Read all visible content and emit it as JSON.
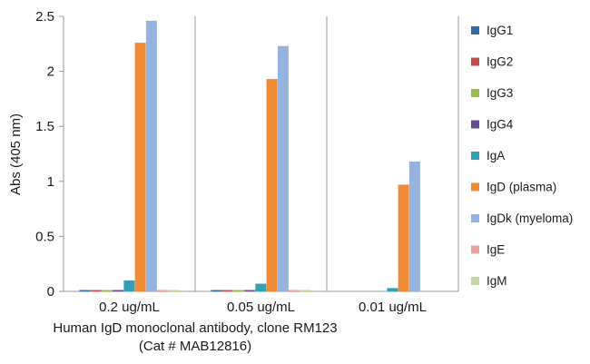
{
  "chart_data": {
    "type": "bar",
    "title": "",
    "ylabel": "Abs (405 nm)",
    "xlabel_lines": [
      "Human IgD monoclonal antibody, clone RM123",
      "(Cat # MAB12816)"
    ],
    "ylim": [
      0,
      2.5
    ],
    "yticks": [
      0,
      0.5,
      1,
      1.5,
      2,
      2.5
    ],
    "ytick_labels": [
      "0",
      "0.5",
      "1",
      "1.5",
      "2",
      "2.5"
    ],
    "grid": "vertical separators between groups",
    "legend_position": "right",
    "categories": [
      "0.2 ug/mL",
      "0.05 ug/mL",
      "0.01 ug/mL"
    ],
    "series": [
      {
        "name": "IgG1",
        "color": "#2e6da4",
        "values": [
          0.01,
          0.005,
          0.0
        ]
      },
      {
        "name": "IgG2",
        "color": "#c0504d",
        "values": [
          0.01,
          0.005,
          0.0
        ]
      },
      {
        "name": "IgG3",
        "color": "#9bbb59",
        "values": [
          0.005,
          0.005,
          0.0
        ]
      },
      {
        "name": "IgG4",
        "color": "#6a4c93",
        "values": [
          0.005,
          0.005,
          0.0
        ]
      },
      {
        "name": "IgA",
        "color": "#31a1b5",
        "values": [
          0.1,
          0.07,
          0.03
        ]
      },
      {
        "name": "IgD (plasma)",
        "color": "#f08a35",
        "values": [
          2.26,
          1.93,
          0.97
        ]
      },
      {
        "name": "IgDk (myeloma)",
        "color": "#95b3de",
        "values": [
          2.46,
          2.23,
          1.18
        ]
      },
      {
        "name": "IgE",
        "color": "#e8a2a2",
        "values": [
          0.005,
          0.005,
          0.0
        ]
      },
      {
        "name": "IgM",
        "color": "#c4d9a0",
        "values": [
          0.005,
          0.005,
          0.0
        ]
      }
    ]
  }
}
